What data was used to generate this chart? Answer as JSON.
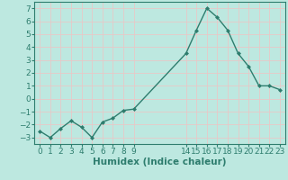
{
  "x": [
    0,
    1,
    2,
    3,
    4,
    5,
    6,
    7,
    8,
    9,
    14,
    15,
    16,
    17,
    18,
    19,
    20,
    21,
    22,
    23
  ],
  "y": [
    -2.5,
    -3.0,
    -2.3,
    -1.7,
    -2.2,
    -3.0,
    -1.8,
    -1.5,
    -0.9,
    -0.8,
    3.5,
    5.3,
    7.0,
    6.3,
    5.3,
    3.5,
    2.5,
    1.0,
    1.0,
    0.7
  ],
  "line_color": "#2e7d6e",
  "marker_color": "#2e7d6e",
  "bg_color": "#bde8e0",
  "grid_color": "#e8c8c8",
  "axis_color": "#2e7d6e",
  "xlabel": "Humidex (Indice chaleur)",
  "xlabel_fontsize": 7.5,
  "tick_fontsize": 6.5,
  "ylim": [
    -3.5,
    7.5
  ],
  "yticks": [
    -3,
    -2,
    -1,
    0,
    1,
    2,
    3,
    4,
    5,
    6,
    7
  ],
  "xtick_positions": [
    0,
    1,
    2,
    3,
    4,
    5,
    6,
    7,
    8,
    9,
    14,
    15,
    16,
    17,
    18,
    19,
    20,
    21,
    22,
    23
  ],
  "xtick_labels": [
    "0",
    "1",
    "2",
    "3",
    "4",
    "5",
    "6",
    "7",
    "8",
    "9",
    "14",
    "15",
    "16",
    "17",
    "18",
    "19",
    "20",
    "21",
    "22",
    "23"
  ]
}
